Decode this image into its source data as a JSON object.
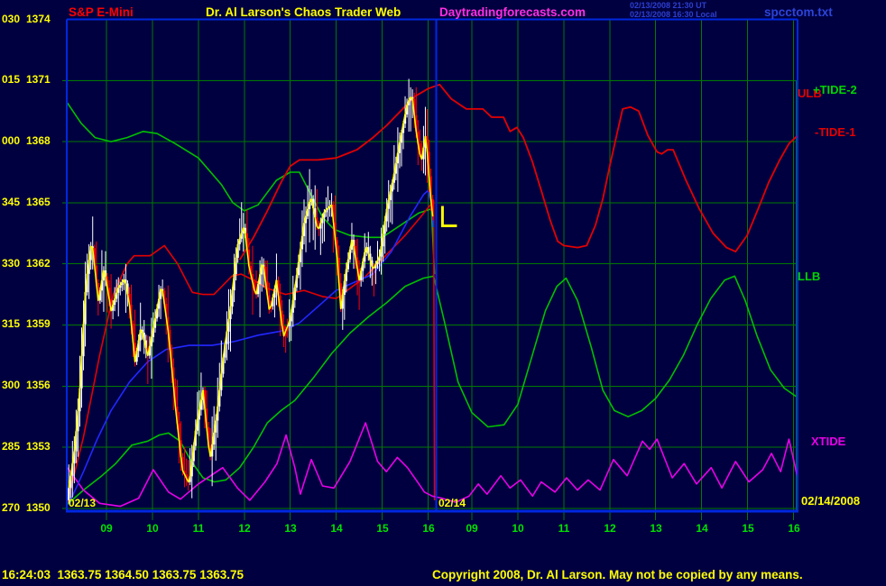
{
  "header": {
    "symbol": "S&P E-Mini",
    "title": "Dr. Al Larson's Chaos Trader Web",
    "site": "Daytradingforecasts.com",
    "datetime_ut": "02/13/2008 21:30 UT",
    "datetime_local": "02/13/2008 16:30 Local",
    "filename": "spcctom.txt"
  },
  "footer": {
    "quote": "16:24:03  1363.75 1364.50 1363.75 1363.75",
    "copyright": "Copyright 2008, Dr. Al Larson. May not be copied by any means."
  },
  "right_labels": {
    "ulb": {
      "text": "ULB",
      "color": "#e40000"
    },
    "tide2": {
      "text": "+TIDE-2",
      "color": "#00d400"
    },
    "tide1": {
      "text": "-TIDE-1",
      "color": "#e40000"
    },
    "llb": {
      "text": "LLB",
      "color": "#00d400"
    },
    "xtide": {
      "text": "XTIDE",
      "color": "#e800e8"
    }
  },
  "chart_data": {
    "type": "candlestick+line-forecast",
    "symbol": "S&P E-Mini",
    "y_axis": {
      "rows": [
        {
          "deg": "030",
          "price": 1374
        },
        {
          "deg": "015",
          "price": 1371
        },
        {
          "deg": "000",
          "price": 1368
        },
        {
          "deg": "345",
          "price": 1365
        },
        {
          "deg": "330",
          "price": 1362
        },
        {
          "deg": "315",
          "price": 1359
        },
        {
          "deg": "300",
          "price": 1356
        },
        {
          "deg": "285",
          "price": 1353
        },
        {
          "deg": "270",
          "price": 1350
        }
      ],
      "price_step": 3
    },
    "x_axis": {
      "days": [
        {
          "date": "02/13",
          "hours": [
            "09",
            "10",
            "11",
            "12",
            "13",
            "14",
            "15",
            "16"
          ]
        },
        {
          "date": "02/14",
          "hours": [
            "09",
            "10",
            "11",
            "12",
            "13",
            "14",
            "15",
            "16"
          ]
        }
      ],
      "right_date": "02/14/2008"
    },
    "candles": {
      "t_start": 8.18,
      "t_end": 16.12,
      "t_step": 0.04
    },
    "series": {
      "price_path": [
        [
          8.14,
          1350.4
        ],
        [
          8.22,
          1351.6
        ],
        [
          8.3,
          1352.8
        ],
        [
          8.41,
          1355.5
        ],
        [
          8.55,
          1361.0
        ],
        [
          8.68,
          1363.2
        ],
        [
          8.82,
          1360.2
        ],
        [
          8.95,
          1361.8
        ],
        [
          9.1,
          1359.7
        ],
        [
          9.25,
          1360.8
        ],
        [
          9.4,
          1361.3
        ],
        [
          9.5,
          1360.0
        ],
        [
          9.62,
          1357.2
        ],
        [
          9.75,
          1358.9
        ],
        [
          9.9,
          1357.5
        ],
        [
          10.05,
          1359.2
        ],
        [
          10.2,
          1361.0
        ],
        [
          10.35,
          1358.6
        ],
        [
          10.5,
          1355.0
        ],
        [
          10.65,
          1351.9
        ],
        [
          10.8,
          1351.2
        ],
        [
          10.95,
          1354.0
        ],
        [
          11.1,
          1355.8
        ],
        [
          11.25,
          1352.4
        ],
        [
          11.4,
          1354.6
        ],
        [
          11.55,
          1357.6
        ],
        [
          11.7,
          1359.9
        ],
        [
          11.85,
          1362.9
        ],
        [
          12.0,
          1363.9
        ],
        [
          12.1,
          1361.9
        ],
        [
          12.25,
          1360.4
        ],
        [
          12.4,
          1362.2
        ],
        [
          12.55,
          1359.6
        ],
        [
          12.7,
          1361.2
        ],
        [
          12.85,
          1358.4
        ],
        [
          13.0,
          1359.3
        ],
        [
          13.15,
          1361.6
        ],
        [
          13.3,
          1364.0
        ],
        [
          13.45,
          1365.3
        ],
        [
          13.6,
          1363.6
        ],
        [
          13.75,
          1364.6
        ],
        [
          13.9,
          1364.9
        ],
        [
          14.02,
          1362.3
        ],
        [
          14.1,
          1359.8
        ],
        [
          14.2,
          1361.5
        ],
        [
          14.35,
          1363.3
        ],
        [
          14.5,
          1361.2
        ],
        [
          14.65,
          1362.9
        ],
        [
          14.8,
          1361.7
        ],
        [
          14.95,
          1362.4
        ],
        [
          15.1,
          1364.7
        ],
        [
          15.25,
          1366.3
        ],
        [
          15.4,
          1368.2
        ],
        [
          15.55,
          1369.9
        ],
        [
          15.65,
          1370.3
        ],
        [
          15.75,
          1368.3
        ],
        [
          15.85,
          1367.0
        ],
        [
          15.95,
          1368.4
        ],
        [
          16.05,
          1365.4
        ],
        [
          16.12,
          1363.9
        ]
      ],
      "ma_blue": [
        [
          8.18,
          1350.2
        ],
        [
          8.5,
          1351.8
        ],
        [
          8.8,
          1353.4
        ],
        [
          9.1,
          1354.8
        ],
        [
          9.5,
          1356.2
        ],
        [
          9.9,
          1357.2
        ],
        [
          10.3,
          1357.8
        ],
        [
          10.8,
          1358.0
        ],
        [
          11.3,
          1358.0
        ],
        [
          11.8,
          1358.2
        ],
        [
          12.3,
          1358.5
        ],
        [
          12.8,
          1358.7
        ],
        [
          13.2,
          1359.1
        ],
        [
          13.6,
          1359.9
        ],
        [
          14.0,
          1360.7
        ],
        [
          14.4,
          1361.1
        ],
        [
          14.8,
          1361.5
        ],
        [
          15.2,
          1362.6
        ],
        [
          15.6,
          1364.3
        ],
        [
          15.9,
          1365.4
        ],
        [
          16.0,
          1365.6
        ],
        [
          16.08,
          1364.8
        ],
        [
          16.12,
          1363.8
        ]
      ],
      "tide1_red": [
        [
          11.9,
          1362.2
        ],
        [
          12.2,
          1363.3
        ],
        [
          12.5,
          1364.6
        ],
        [
          12.8,
          1366.0
        ],
        [
          13.0,
          1366.8
        ],
        [
          13.2,
          1367.1
        ],
        [
          13.6,
          1367.1
        ],
        [
          14.0,
          1367.2
        ],
        [
          14.45,
          1367.6
        ],
        [
          14.8,
          1368.2
        ],
        [
          15.1,
          1368.8
        ],
        [
          15.4,
          1369.5
        ],
        [
          15.7,
          1370.2
        ],
        [
          16.0,
          1370.6
        ],
        [
          16.12,
          1370.7
        ],
        [
          32.3,
          1370.8
        ],
        [
          32.55,
          1370.1
        ],
        [
          32.88,
          1369.6
        ],
        [
          33.24,
          1369.6
        ],
        [
          33.43,
          1369.2
        ],
        [
          33.69,
          1369.2
        ],
        [
          33.83,
          1368.5
        ],
        [
          33.98,
          1368.7
        ],
        [
          34.12,
          1368.2
        ],
        [
          34.32,
          1367.0
        ],
        [
          34.51,
          1365.6
        ],
        [
          34.71,
          1364.1
        ],
        [
          34.87,
          1363.1
        ],
        [
          35.0,
          1362.9
        ],
        [
          35.3,
          1362.8
        ],
        [
          35.5,
          1362.9
        ],
        [
          35.69,
          1363.9
        ],
        [
          35.85,
          1365.2
        ],
        [
          36.0,
          1366.8
        ],
        [
          36.16,
          1368.4
        ],
        [
          36.28,
          1369.6
        ],
        [
          36.45,
          1369.7
        ],
        [
          36.63,
          1369.5
        ],
        [
          36.83,
          1368.3
        ],
        [
          37.03,
          1367.5
        ],
        [
          37.13,
          1367.4
        ],
        [
          37.26,
          1367.6
        ],
        [
          37.38,
          1367.6
        ],
        [
          37.66,
          1366.1
        ],
        [
          37.95,
          1364.7
        ],
        [
          38.25,
          1363.5
        ],
        [
          38.54,
          1362.8
        ],
        [
          38.74,
          1362.6
        ],
        [
          38.99,
          1363.4
        ],
        [
          39.23,
          1364.7
        ],
        [
          39.46,
          1366.0
        ],
        [
          39.7,
          1367.1
        ],
        [
          39.9,
          1367.9
        ],
        [
          40.09,
          1368.3
        ]
      ],
      "tide1_past_red": [
        [
          8.15,
          1350.3
        ],
        [
          8.5,
          1353.5
        ],
        [
          8.85,
          1357.5
        ],
        [
          9.15,
          1360.5
        ],
        [
          9.45,
          1362.0
        ],
        [
          9.6,
          1362.4
        ],
        [
          9.95,
          1362.4
        ],
        [
          10.26,
          1362.9
        ],
        [
          10.55,
          1362.0
        ],
        [
          10.87,
          1360.6
        ],
        [
          11.1,
          1360.5
        ],
        [
          11.34,
          1360.5
        ],
        [
          11.73,
          1361.4
        ],
        [
          11.93,
          1361.5
        ],
        [
          12.2,
          1361.2
        ],
        [
          12.5,
          1360.8
        ],
        [
          12.9,
          1360.5
        ],
        [
          13.3,
          1360.7
        ],
        [
          13.7,
          1360.4
        ],
        [
          14.0,
          1360.3
        ],
        [
          14.3,
          1360.8
        ],
        [
          14.6,
          1361.3
        ],
        [
          14.9,
          1362.0
        ],
        [
          15.2,
          1362.7
        ],
        [
          15.5,
          1363.4
        ],
        [
          15.8,
          1364.2
        ],
        [
          16.05,
          1364.9
        ],
        [
          16.12,
          1365.1
        ],
        [
          16.14,
          1350.4
        ]
      ],
      "tide2_green_past": [
        [
          8.15,
          1369.9
        ],
        [
          8.45,
          1368.9
        ],
        [
          8.75,
          1368.2
        ],
        [
          9.1,
          1368.0
        ],
        [
          9.45,
          1368.2
        ],
        [
          9.8,
          1368.5
        ],
        [
          10.1,
          1368.4
        ],
        [
          10.5,
          1367.9
        ],
        [
          11.0,
          1367.2
        ],
        [
          11.5,
          1365.9
        ],
        [
          11.75,
          1365.0
        ],
        [
          12.0,
          1364.6
        ],
        [
          12.3,
          1364.9
        ],
        [
          12.7,
          1366.1
        ],
        [
          13.0,
          1366.5
        ],
        [
          13.2,
          1366.5
        ],
        [
          13.45,
          1365.4
        ],
        [
          13.7,
          1364.3
        ],
        [
          13.95,
          1363.7
        ],
        [
          14.3,
          1363.4
        ],
        [
          14.7,
          1363.3
        ],
        [
          15.0,
          1363.3
        ],
        [
          15.4,
          1363.9
        ],
        [
          15.8,
          1364.5
        ],
        [
          16.07,
          1364.7
        ],
        [
          16.14,
          1361.5
        ]
      ],
      "llb_tide2_green": [
        [
          8.15,
          1350.2
        ],
        [
          8.5,
          1350.9
        ],
        [
          8.9,
          1351.6
        ],
        [
          9.2,
          1352.2
        ],
        [
          9.55,
          1353.1
        ],
        [
          9.9,
          1353.3
        ],
        [
          10.15,
          1353.6
        ],
        [
          10.35,
          1353.7
        ],
        [
          10.6,
          1353.3
        ],
        [
          10.85,
          1352.3
        ],
        [
          11.1,
          1351.5
        ],
        [
          11.35,
          1351.3
        ],
        [
          11.6,
          1351.4
        ],
        [
          11.9,
          1352.0
        ],
        [
          12.2,
          1353.0
        ],
        [
          12.5,
          1354.2
        ],
        [
          12.8,
          1354.8
        ],
        [
          13.1,
          1355.3
        ],
        [
          13.5,
          1356.4
        ],
        [
          13.9,
          1357.6
        ],
        [
          14.3,
          1358.6
        ],
        [
          14.7,
          1359.4
        ],
        [
          15.1,
          1360.1
        ],
        [
          15.5,
          1360.9
        ],
        [
          15.9,
          1361.3
        ],
        [
          16.12,
          1361.4
        ],
        [
          32.4,
          1359.2
        ],
        [
          32.7,
          1356.2
        ],
        [
          33.0,
          1354.7
        ],
        [
          33.35,
          1354.0
        ],
        [
          33.7,
          1354.1
        ],
        [
          34.0,
          1355.1
        ],
        [
          34.3,
          1357.4
        ],
        [
          34.6,
          1359.7
        ],
        [
          34.85,
          1360.9
        ],
        [
          35.05,
          1361.3
        ],
        [
          35.3,
          1360.2
        ],
        [
          35.6,
          1357.9
        ],
        [
          35.85,
          1355.8
        ],
        [
          36.1,
          1354.8
        ],
        [
          36.4,
          1354.5
        ],
        [
          36.7,
          1354.8
        ],
        [
          37.0,
          1355.4
        ],
        [
          37.3,
          1356.3
        ],
        [
          37.6,
          1357.5
        ],
        [
          37.9,
          1359.0
        ],
        [
          38.2,
          1360.3
        ],
        [
          38.5,
          1361.2
        ],
        [
          38.72,
          1361.4
        ],
        [
          38.95,
          1360.2
        ],
        [
          39.2,
          1358.5
        ],
        [
          39.5,
          1356.8
        ],
        [
          39.8,
          1355.9
        ],
        [
          40.05,
          1355.5
        ]
      ],
      "xtide_magenta": [
        [
          8.15,
          1352.0
        ],
        [
          8.5,
          1350.9
        ],
        [
          8.85,
          1350.25
        ],
        [
          9.3,
          1350.1
        ],
        [
          9.7,
          1350.5
        ],
        [
          10.02,
          1351.9
        ],
        [
          10.35,
          1350.8
        ],
        [
          10.61,
          1350.45
        ],
        [
          11.0,
          1351.2
        ],
        [
          11.53,
          1352.0
        ],
        [
          11.85,
          1351.0
        ],
        [
          12.12,
          1350.4
        ],
        [
          12.45,
          1351.3
        ],
        [
          12.71,
          1352.2
        ],
        [
          12.91,
          1353.6
        ],
        [
          13.1,
          1352.0
        ],
        [
          13.22,
          1350.7
        ],
        [
          13.46,
          1352.4
        ],
        [
          13.7,
          1351.1
        ],
        [
          13.95,
          1351.0
        ],
        [
          14.3,
          1352.3
        ],
        [
          14.64,
          1354.2
        ],
        [
          14.9,
          1352.3
        ],
        [
          15.09,
          1351.8
        ],
        [
          15.33,
          1352.5
        ],
        [
          15.55,
          1352.0
        ],
        [
          15.8,
          1351.2
        ],
        [
          15.92,
          1350.8
        ],
        [
          16.09,
          1350.6
        ],
        [
          32.35,
          1350.5
        ],
        [
          32.65,
          1350.3
        ],
        [
          32.94,
          1350.6
        ],
        [
          33.14,
          1351.2
        ],
        [
          33.33,
          1350.7
        ],
        [
          33.63,
          1351.6
        ],
        [
          33.83,
          1351.0
        ],
        [
          34.06,
          1351.4
        ],
        [
          34.32,
          1350.6
        ],
        [
          34.51,
          1351.3
        ],
        [
          34.81,
          1350.8
        ],
        [
          35.06,
          1351.5
        ],
        [
          35.3,
          1350.9
        ],
        [
          35.53,
          1351.4
        ],
        [
          35.79,
          1350.9
        ],
        [
          36.08,
          1352.4
        ],
        [
          36.38,
          1351.6
        ],
        [
          36.71,
          1353.3
        ],
        [
          36.87,
          1352.9
        ],
        [
          37.03,
          1353.4
        ],
        [
          37.36,
          1351.5
        ],
        [
          37.62,
          1352.2
        ],
        [
          37.89,
          1351.2
        ],
        [
          38.21,
          1352.0
        ],
        [
          38.44,
          1351.0
        ],
        [
          38.74,
          1352.3
        ],
        [
          39.03,
          1351.3
        ],
        [
          39.33,
          1351.9
        ],
        [
          39.52,
          1352.7
        ],
        [
          39.72,
          1351.8
        ],
        [
          39.9,
          1353.4
        ],
        [
          40.09,
          1351.5
        ]
      ]
    },
    "markers": {
      "l_marker": {
        "glyph": "L",
        "t": 32.36,
        "price": 1364.4
      }
    },
    "colors": {
      "background": "#000040",
      "grid_green": "#007a00",
      "border_blue": "#0028e0",
      "candle_up": "#ffffff",
      "candle_down": "#ff0000",
      "ma_yellow": "#ffff00",
      "ma_blue": "#2228ff",
      "tide_red": "#e40000",
      "tide_green": "#00c000",
      "xtide_magenta": "#e800e8",
      "label_yellow": "#ffff00",
      "label_green": "#00e400",
      "header_blue": "#2d3fd0"
    }
  }
}
